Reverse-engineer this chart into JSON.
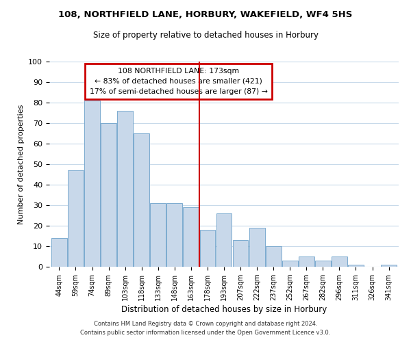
{
  "title": "108, NORTHFIELD LANE, HORBURY, WAKEFIELD, WF4 5HS",
  "subtitle": "Size of property relative to detached houses in Horbury",
  "xlabel": "Distribution of detached houses by size in Horbury",
  "ylabel": "Number of detached properties",
  "bar_color": "#c8d8ea",
  "bar_edge_color": "#7baacf",
  "background_color": "#ffffff",
  "grid_color": "#c8daea",
  "vline_color": "#cc0000",
  "categories": [
    "44sqm",
    "59sqm",
    "74sqm",
    "89sqm",
    "103sqm",
    "118sqm",
    "133sqm",
    "148sqm",
    "163sqm",
    "178sqm",
    "193sqm",
    "207sqm",
    "222sqm",
    "237sqm",
    "252sqm",
    "267sqm",
    "282sqm",
    "296sqm",
    "311sqm",
    "326sqm",
    "341sqm"
  ],
  "values": [
    14,
    47,
    81,
    70,
    76,
    65,
    31,
    31,
    29,
    18,
    26,
    13,
    19,
    10,
    3,
    5,
    3,
    5,
    1,
    0,
    1
  ],
  "ylim": [
    0,
    100
  ],
  "yticks": [
    0,
    10,
    20,
    30,
    40,
    50,
    60,
    70,
    80,
    90,
    100
  ],
  "vline_index": 9,
  "annotation_title": "108 NORTHFIELD LANE: 173sqm",
  "annotation_line1": "← 83% of detached houses are smaller (421)",
  "annotation_line2": "17% of semi-detached houses are larger (87) →",
  "annotation_box_color": "#cc0000",
  "footnote1": "Contains HM Land Registry data © Crown copyright and database right 2024.",
  "footnote2": "Contains public sector information licensed under the Open Government Licence v3.0."
}
